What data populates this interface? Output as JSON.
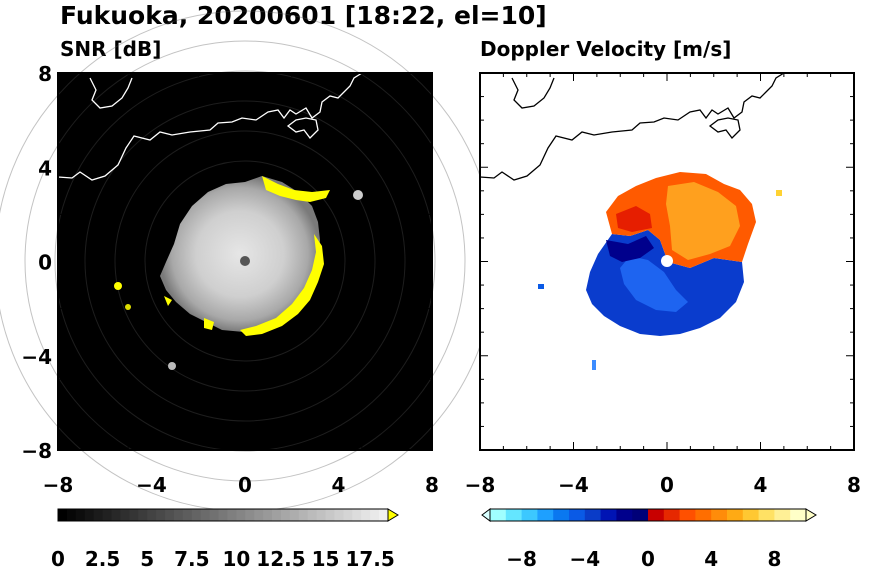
{
  "figure": {
    "title": "Fukuoka, 20200601 [18:22, el=10]"
  },
  "chart_data": [
    {
      "type": "heatmap",
      "title": "SNR [dB]",
      "xlim": [
        -8,
        8
      ],
      "ylim": [
        -8,
        8
      ],
      "x_ticks": [
        "−8",
        "−4",
        "0",
        "4",
        "8"
      ],
      "y_ticks": [
        "8",
        "4",
        "0",
        "−4",
        "−8"
      ],
      "colorbar": {
        "range": [
          0,
          18.5
        ],
        "extend": "max",
        "tick_labels": [
          "0",
          "2.5",
          "5",
          "7.5",
          "10",
          "12.5",
          "15",
          "17.5"
        ],
        "colors": [
          "#000000",
          "#ffffff",
          "#ffff00"
        ]
      },
      "background_color": "#000000",
      "echo_radius": 3.2,
      "coastline_color": "#ffffff"
    },
    {
      "type": "heatmap",
      "title": "Doppler Velocity [m/s]",
      "xlim": [
        -8,
        8
      ],
      "ylim": [
        -8,
        8
      ],
      "x_ticks": [
        "−8",
        "−4",
        "0",
        "4",
        "8"
      ],
      "y_ticks": [],
      "colorbar": {
        "range": [
          -10,
          10
        ],
        "extend": "both",
        "tick_labels": [
          "−8",
          "−4",
          "0",
          "4",
          "8"
        ],
        "colors_negative": [
          "#c8ffff",
          "#3cd2ff",
          "#0a5ae6",
          "#0000a0"
        ],
        "colors_positive": [
          "#dc0000",
          "#ff5a00",
          "#ffaa14",
          "#ffffb4"
        ]
      },
      "background_color": "#ffffff",
      "echo_radius": 3.2,
      "coastline_color": "#000000"
    }
  ]
}
